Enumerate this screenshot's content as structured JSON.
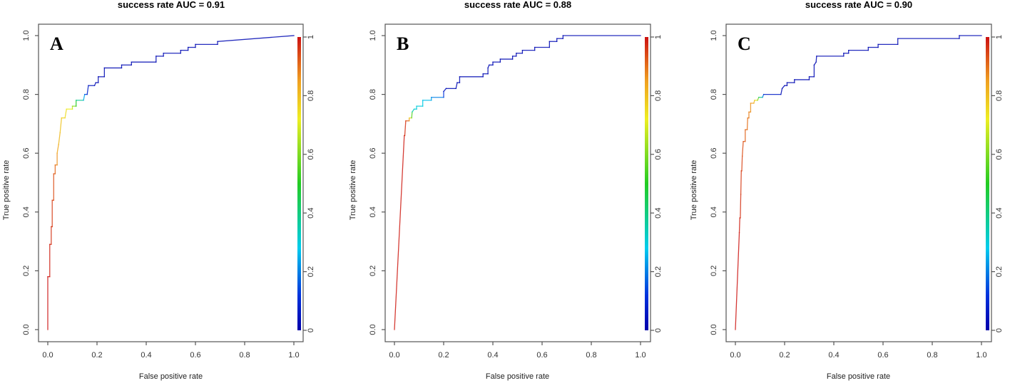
{
  "chart_data": [
    {
      "type": "line",
      "panel_label": "A",
      "title": "success rate AUC = 0.91",
      "xlabel": "False positive rate",
      "ylabel": "True positive rate",
      "xlim": [
        0,
        1
      ],
      "ylim": [
        0,
        1
      ],
      "xticks": [
        "0.0",
        "0.2",
        "0.4",
        "0.6",
        "0.8",
        "1.0"
      ],
      "yticks": [
        "0.0",
        "0.2",
        "0.4",
        "0.6",
        "0.8",
        "1.0"
      ],
      "colorbar": {
        "ticks": [
          "0",
          "0.2",
          "0.4",
          "0.6",
          "0.8",
          "1"
        ],
        "range": [
          0,
          1
        ]
      },
      "points": [
        {
          "x": 0.0,
          "y": 0.0,
          "c": 1.0
        },
        {
          "x": 0.0,
          "y": 0.18,
          "c": 1.0
        },
        {
          "x": 0.008,
          "y": 0.18,
          "c": 0.99
        },
        {
          "x": 0.008,
          "y": 0.29,
          "c": 0.98
        },
        {
          "x": 0.014,
          "y": 0.29,
          "c": 0.97
        },
        {
          "x": 0.014,
          "y": 0.35,
          "c": 0.96
        },
        {
          "x": 0.018,
          "y": 0.35,
          "c": 0.96
        },
        {
          "x": 0.018,
          "y": 0.44,
          "c": 0.95
        },
        {
          "x": 0.024,
          "y": 0.44,
          "c": 0.94
        },
        {
          "x": 0.024,
          "y": 0.53,
          "c": 0.93
        },
        {
          "x": 0.03,
          "y": 0.53,
          "c": 0.92
        },
        {
          "x": 0.03,
          "y": 0.56,
          "c": 0.9
        },
        {
          "x": 0.038,
          "y": 0.56,
          "c": 0.88
        },
        {
          "x": 0.038,
          "y": 0.6,
          "c": 0.85
        },
        {
          "x": 0.044,
          "y": 0.63,
          "c": 0.82
        },
        {
          "x": 0.05,
          "y": 0.67,
          "c": 0.8
        },
        {
          "x": 0.056,
          "y": 0.72,
          "c": 0.78
        },
        {
          "x": 0.07,
          "y": 0.72,
          "c": 0.76
        },
        {
          "x": 0.076,
          "y": 0.75,
          "c": 0.74
        },
        {
          "x": 0.1,
          "y": 0.75,
          "c": 0.7
        },
        {
          "x": 0.1,
          "y": 0.76,
          "c": 0.65
        },
        {
          "x": 0.115,
          "y": 0.76,
          "c": 0.55
        },
        {
          "x": 0.115,
          "y": 0.78,
          "c": 0.45
        },
        {
          "x": 0.145,
          "y": 0.78,
          "c": 0.3
        },
        {
          "x": 0.15,
          "y": 0.8,
          "c": 0.18
        },
        {
          "x": 0.16,
          "y": 0.8,
          "c": 0.1
        },
        {
          "x": 0.165,
          "y": 0.83,
          "c": 0.05
        },
        {
          "x": 0.19,
          "y": 0.83,
          "c": 0.03
        },
        {
          "x": 0.195,
          "y": 0.84,
          "c": 0.02
        },
        {
          "x": 0.205,
          "y": 0.84,
          "c": 0.02
        },
        {
          "x": 0.205,
          "y": 0.86,
          "c": 0.02
        },
        {
          "x": 0.23,
          "y": 0.86,
          "c": 0.02
        },
        {
          "x": 0.23,
          "y": 0.89,
          "c": 0.02
        },
        {
          "x": 0.3,
          "y": 0.89,
          "c": 0.02
        },
        {
          "x": 0.3,
          "y": 0.9,
          "c": 0.02
        },
        {
          "x": 0.34,
          "y": 0.9,
          "c": 0.02
        },
        {
          "x": 0.34,
          "y": 0.91,
          "c": 0.02
        },
        {
          "x": 0.44,
          "y": 0.91,
          "c": 0.02
        },
        {
          "x": 0.44,
          "y": 0.93,
          "c": 0.02
        },
        {
          "x": 0.47,
          "y": 0.93,
          "c": 0.02
        },
        {
          "x": 0.47,
          "y": 0.94,
          "c": 0.02
        },
        {
          "x": 0.54,
          "y": 0.94,
          "c": 0.02
        },
        {
          "x": 0.54,
          "y": 0.95,
          "c": 0.02
        },
        {
          "x": 0.57,
          "y": 0.95,
          "c": 0.02
        },
        {
          "x": 0.57,
          "y": 0.96,
          "c": 0.02
        },
        {
          "x": 0.6,
          "y": 0.96,
          "c": 0.02
        },
        {
          "x": 0.6,
          "y": 0.97,
          "c": 0.02
        },
        {
          "x": 0.69,
          "y": 0.97,
          "c": 0.02
        },
        {
          "x": 0.69,
          "y": 0.98,
          "c": 0.02
        },
        {
          "x": 1.0,
          "y": 1.0,
          "c": 0.02
        }
      ]
    },
    {
      "type": "line",
      "panel_label": "B",
      "title": "success rate AUC = 0.88",
      "xlabel": "False positive rate",
      "ylabel": "True positive rate",
      "xlim": [
        0,
        1
      ],
      "ylim": [
        0,
        1
      ],
      "xticks": [
        "0.0",
        "0.2",
        "0.4",
        "0.6",
        "0.8",
        "1.0"
      ],
      "yticks": [
        "0.0",
        "0.2",
        "0.4",
        "0.6",
        "0.8",
        "1.0"
      ],
      "colorbar": {
        "ticks": [
          "0",
          "0.2",
          "0.4",
          "0.6",
          "0.8",
          "1"
        ],
        "range": [
          0,
          1
        ]
      },
      "points": [
        {
          "x": 0.0,
          "y": 0.0,
          "c": 1.0
        },
        {
          "x": 0.04,
          "y": 0.66,
          "c": 0.98
        },
        {
          "x": 0.042,
          "y": 0.66,
          "c": 0.97
        },
        {
          "x": 0.046,
          "y": 0.71,
          "c": 0.96
        },
        {
          "x": 0.06,
          "y": 0.71,
          "c": 0.9
        },
        {
          "x": 0.06,
          "y": 0.72,
          "c": 0.8
        },
        {
          "x": 0.07,
          "y": 0.72,
          "c": 0.7
        },
        {
          "x": 0.072,
          "y": 0.74,
          "c": 0.4
        },
        {
          "x": 0.08,
          "y": 0.75,
          "c": 0.3
        },
        {
          "x": 0.09,
          "y": 0.75,
          "c": 0.3
        },
        {
          "x": 0.09,
          "y": 0.76,
          "c": 0.3
        },
        {
          "x": 0.115,
          "y": 0.76,
          "c": 0.3
        },
        {
          "x": 0.115,
          "y": 0.78,
          "c": 0.28
        },
        {
          "x": 0.15,
          "y": 0.78,
          "c": 0.25
        },
        {
          "x": 0.15,
          "y": 0.79,
          "c": 0.22
        },
        {
          "x": 0.2,
          "y": 0.79,
          "c": 0.18
        },
        {
          "x": 0.2,
          "y": 0.81,
          "c": 0.05
        },
        {
          "x": 0.21,
          "y": 0.82,
          "c": 0.03
        },
        {
          "x": 0.25,
          "y": 0.82,
          "c": 0.02
        },
        {
          "x": 0.255,
          "y": 0.84,
          "c": 0.02
        },
        {
          "x": 0.265,
          "y": 0.84,
          "c": 0.02
        },
        {
          "x": 0.265,
          "y": 0.86,
          "c": 0.02
        },
        {
          "x": 0.36,
          "y": 0.86,
          "c": 0.02
        },
        {
          "x": 0.36,
          "y": 0.87,
          "c": 0.02
        },
        {
          "x": 0.38,
          "y": 0.87,
          "c": 0.02
        },
        {
          "x": 0.38,
          "y": 0.89,
          "c": 0.02
        },
        {
          "x": 0.385,
          "y": 0.9,
          "c": 0.02
        },
        {
          "x": 0.4,
          "y": 0.9,
          "c": 0.02
        },
        {
          "x": 0.4,
          "y": 0.91,
          "c": 0.02
        },
        {
          "x": 0.43,
          "y": 0.91,
          "c": 0.02
        },
        {
          "x": 0.43,
          "y": 0.92,
          "c": 0.02
        },
        {
          "x": 0.48,
          "y": 0.92,
          "c": 0.02
        },
        {
          "x": 0.48,
          "y": 0.93,
          "c": 0.02
        },
        {
          "x": 0.495,
          "y": 0.93,
          "c": 0.02
        },
        {
          "x": 0.495,
          "y": 0.94,
          "c": 0.02
        },
        {
          "x": 0.52,
          "y": 0.94,
          "c": 0.02
        },
        {
          "x": 0.52,
          "y": 0.95,
          "c": 0.02
        },
        {
          "x": 0.57,
          "y": 0.95,
          "c": 0.02
        },
        {
          "x": 0.57,
          "y": 0.96,
          "c": 0.02
        },
        {
          "x": 0.63,
          "y": 0.96,
          "c": 0.02
        },
        {
          "x": 0.63,
          "y": 0.98,
          "c": 0.02
        },
        {
          "x": 0.66,
          "y": 0.98,
          "c": 0.02
        },
        {
          "x": 0.66,
          "y": 0.99,
          "c": 0.02
        },
        {
          "x": 0.685,
          "y": 0.99,
          "c": 0.02
        },
        {
          "x": 0.685,
          "y": 1.0,
          "c": 0.02
        },
        {
          "x": 1.0,
          "y": 1.0,
          "c": 0.02
        }
      ]
    },
    {
      "type": "line",
      "panel_label": "C",
      "title": "success rate AUC = 0.90",
      "xlabel": "False positive rate",
      "ylabel": "True positive rate",
      "xlim": [
        0,
        1
      ],
      "ylim": [
        0,
        1
      ],
      "xticks": [
        "0.0",
        "0.2",
        "0.4",
        "0.6",
        "0.8",
        "1.0"
      ],
      "yticks": [
        "0.0",
        "0.2",
        "0.4",
        "0.6",
        "0.8",
        "1.0"
      ],
      "colorbar": {
        "ticks": [
          "0",
          "0.2",
          "0.4",
          "0.6",
          "0.8",
          "1"
        ],
        "range": [
          0,
          1
        ]
      },
      "points": [
        {
          "x": 0.0,
          "y": 0.0,
          "c": 1.0
        },
        {
          "x": 0.016,
          "y": 0.33,
          "c": 0.99
        },
        {
          "x": 0.018,
          "y": 0.38,
          "c": 0.98
        },
        {
          "x": 0.02,
          "y": 0.38,
          "c": 0.97
        },
        {
          "x": 0.022,
          "y": 0.46,
          "c": 0.96
        },
        {
          "x": 0.024,
          "y": 0.54,
          "c": 0.95
        },
        {
          "x": 0.026,
          "y": 0.54,
          "c": 0.95
        },
        {
          "x": 0.028,
          "y": 0.59,
          "c": 0.94
        },
        {
          "x": 0.032,
          "y": 0.64,
          "c": 0.93
        },
        {
          "x": 0.04,
          "y": 0.64,
          "c": 0.92
        },
        {
          "x": 0.04,
          "y": 0.68,
          "c": 0.91
        },
        {
          "x": 0.048,
          "y": 0.68,
          "c": 0.9
        },
        {
          "x": 0.05,
          "y": 0.72,
          "c": 0.9
        },
        {
          "x": 0.055,
          "y": 0.72,
          "c": 0.89
        },
        {
          "x": 0.055,
          "y": 0.74,
          "c": 0.88
        },
        {
          "x": 0.062,
          "y": 0.74,
          "c": 0.87
        },
        {
          "x": 0.062,
          "y": 0.77,
          "c": 0.86
        },
        {
          "x": 0.075,
          "y": 0.77,
          "c": 0.84
        },
        {
          "x": 0.078,
          "y": 0.78,
          "c": 0.8
        },
        {
          "x": 0.09,
          "y": 0.78,
          "c": 0.7
        },
        {
          "x": 0.095,
          "y": 0.79,
          "c": 0.5
        },
        {
          "x": 0.11,
          "y": 0.79,
          "c": 0.3
        },
        {
          "x": 0.115,
          "y": 0.8,
          "c": 0.1
        },
        {
          "x": 0.185,
          "y": 0.8,
          "c": 0.03
        },
        {
          "x": 0.19,
          "y": 0.82,
          "c": 0.02
        },
        {
          "x": 0.2,
          "y": 0.83,
          "c": 0.02
        },
        {
          "x": 0.21,
          "y": 0.83,
          "c": 0.02
        },
        {
          "x": 0.21,
          "y": 0.84,
          "c": 0.02
        },
        {
          "x": 0.24,
          "y": 0.84,
          "c": 0.02
        },
        {
          "x": 0.24,
          "y": 0.85,
          "c": 0.02
        },
        {
          "x": 0.3,
          "y": 0.85,
          "c": 0.02
        },
        {
          "x": 0.3,
          "y": 0.86,
          "c": 0.02
        },
        {
          "x": 0.32,
          "y": 0.86,
          "c": 0.02
        },
        {
          "x": 0.32,
          "y": 0.9,
          "c": 0.02
        },
        {
          "x": 0.328,
          "y": 0.91,
          "c": 0.02
        },
        {
          "x": 0.33,
          "y": 0.93,
          "c": 0.02
        },
        {
          "x": 0.44,
          "y": 0.93,
          "c": 0.02
        },
        {
          "x": 0.44,
          "y": 0.94,
          "c": 0.02
        },
        {
          "x": 0.46,
          "y": 0.94,
          "c": 0.02
        },
        {
          "x": 0.46,
          "y": 0.95,
          "c": 0.02
        },
        {
          "x": 0.54,
          "y": 0.95,
          "c": 0.02
        },
        {
          "x": 0.54,
          "y": 0.96,
          "c": 0.02
        },
        {
          "x": 0.58,
          "y": 0.96,
          "c": 0.02
        },
        {
          "x": 0.58,
          "y": 0.97,
          "c": 0.02
        },
        {
          "x": 0.66,
          "y": 0.97,
          "c": 0.02
        },
        {
          "x": 0.66,
          "y": 0.99,
          "c": 0.02
        },
        {
          "x": 0.91,
          "y": 0.99,
          "c": 0.02
        },
        {
          "x": 0.91,
          "y": 1.0,
          "c": 0.02
        },
        {
          "x": 1.0,
          "y": 1.0,
          "c": 0.02
        }
      ]
    }
  ]
}
